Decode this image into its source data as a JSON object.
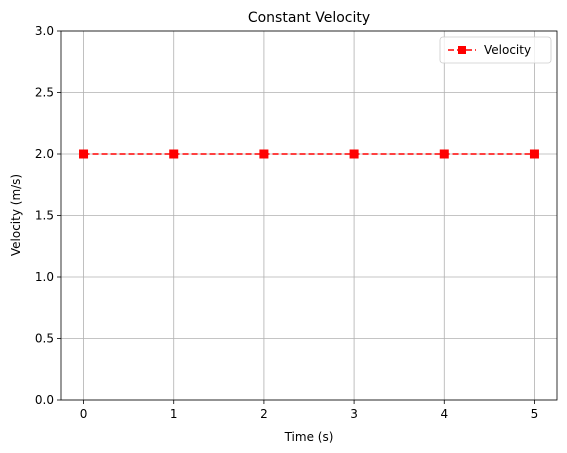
{
  "chart_data": {
    "type": "line",
    "title": "Constant Velocity",
    "xlabel": "Time (s)",
    "ylabel": "Velocity (m/s)",
    "x": [
      0,
      1,
      2,
      3,
      4,
      5
    ],
    "xticks": [
      0,
      1,
      2,
      3,
      4,
      5
    ],
    "xtick_labels": [
      "0",
      "1",
      "2",
      "3",
      "4",
      "5"
    ],
    "yticks": [
      0.0,
      0.5,
      1.0,
      1.5,
      2.0,
      2.5,
      3.0
    ],
    "ytick_labels": [
      "0.0",
      "0.5",
      "1.0",
      "1.5",
      "2.0",
      "2.5",
      "3.0"
    ],
    "xlim": [
      -0.25,
      5.25
    ],
    "ylim": [
      0,
      3
    ],
    "grid": true,
    "legend_position": "top-right",
    "series": [
      {
        "name": "Velocity",
        "values": [
          2,
          2,
          2,
          2,
          2,
          2
        ],
        "color": "#ff0000",
        "line_style": "dashed",
        "marker": "square"
      }
    ]
  }
}
